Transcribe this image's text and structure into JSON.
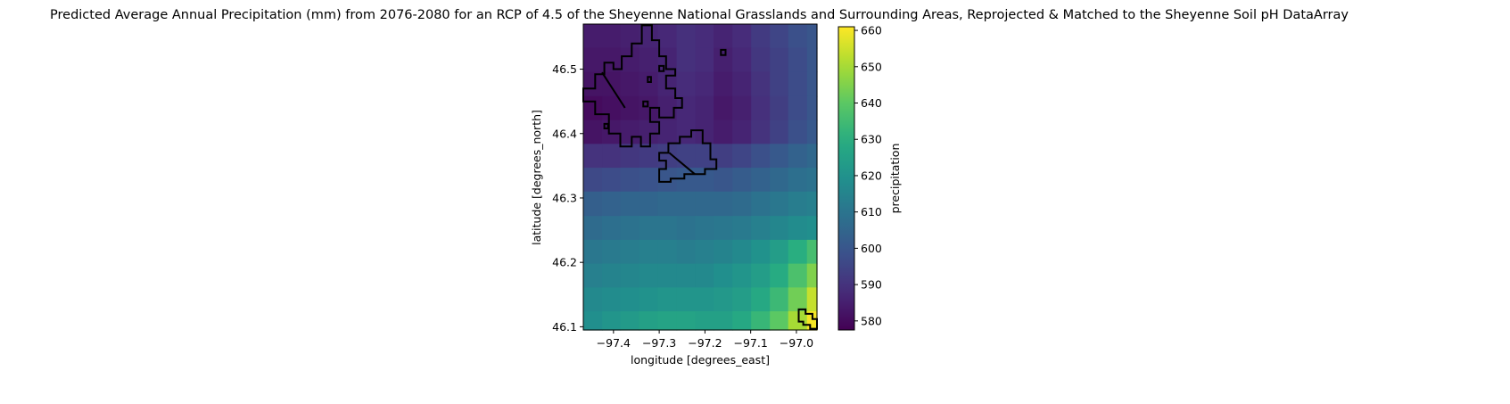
{
  "chart_data": {
    "type": "heatmap",
    "title": "Predicted Average Annual Precipitation (mm) from 2076-2080 for an RCP of 4.5 of the Sheyenne National Grasslands and Surrounding Areas, Reprojected & Matched to the Sheyenne Soil pH DataArray",
    "xlabel": "longitude [degrees_east]",
    "ylabel": "latitude [degrees_north]",
    "colorbar_label": "precipitation",
    "colormap": "viridis",
    "xlim": [
      -97.466,
      -96.955
    ],
    "ylim": [
      46.095,
      46.57
    ],
    "clim": [
      577.5,
      661
    ],
    "x_ticks": [
      -97.4,
      -97.3,
      -97.2,
      -97.1,
      -97.0
    ],
    "x_tick_labels": [
      "−97.4",
      "−97.3",
      "−97.2",
      "−97.1",
      "−97.0"
    ],
    "y_ticks": [
      46.1,
      46.2,
      46.3,
      46.4,
      46.5
    ],
    "y_tick_labels": [
      "46.1",
      "46.2",
      "46.3",
      "46.4",
      "46.5"
    ],
    "colorbar_ticks": [
      580,
      590,
      600,
      610,
      620,
      630,
      640,
      650,
      660
    ],
    "colorbar_tick_labels": [
      "580",
      "590",
      "600",
      "610",
      "620",
      "630",
      "640",
      "650",
      "660"
    ],
    "cell_lon_edges": [
      -97.466,
      -97.425,
      -97.385,
      -97.344,
      -97.303,
      -97.262,
      -97.221,
      -97.181,
      -97.14,
      -97.099,
      -97.058,
      -97.018,
      -96.977,
      -96.955
    ],
    "cell_lat_edges": [
      46.57,
      46.533,
      46.496,
      46.458,
      46.421,
      46.384,
      46.347,
      46.31,
      46.272,
      46.235,
      46.198,
      46.161,
      46.124,
      46.095
    ],
    "values": [
      [
        584,
        584,
        585,
        586,
        587,
        589,
        588,
        586,
        588,
        592,
        595,
        598,
        600
      ],
      [
        583,
        583,
        584,
        585,
        586,
        589,
        588,
        585,
        587,
        591,
        594,
        597,
        600
      ],
      [
        582,
        582,
        583,
        584,
        586,
        588,
        587,
        584,
        586,
        590,
        594,
        597,
        600
      ],
      [
        580,
        581,
        582,
        583,
        585,
        587,
        586,
        583,
        585,
        589,
        593,
        597,
        600
      ],
      [
        582,
        583,
        584,
        585,
        586,
        587,
        586,
        584,
        586,
        590,
        594,
        598,
        601
      ],
      [
        590,
        590,
        591,
        592,
        593,
        594,
        594,
        593,
        595,
        598,
        601,
        604,
        606
      ],
      [
        596,
        597,
        598,
        599,
        600,
        601,
        601,
        600,
        602,
        604,
        606,
        608,
        609
      ],
      [
        603,
        604,
        605,
        605,
        606,
        606,
        606,
        606,
        607,
        609,
        611,
        613,
        614
      ],
      [
        607,
        608,
        609,
        610,
        610,
        609,
        610,
        611,
        612,
        614,
        616,
        618,
        619
      ],
      [
        611,
        612,
        613,
        614,
        614,
        613,
        614,
        615,
        617,
        620,
        624,
        630,
        636
      ],
      [
        614,
        615,
        616,
        617,
        617,
        617,
        617,
        619,
        621,
        624,
        629,
        637,
        645
      ],
      [
        617,
        618,
        619,
        620,
        621,
        621,
        621,
        622,
        624,
        628,
        634,
        643,
        654
      ],
      [
        619,
        621,
        623,
        625,
        626,
        626,
        625,
        625,
        628,
        633,
        640,
        650,
        660
      ]
    ],
    "boundaries": [
      {
        "kind": "polygon",
        "points": [
          [
            -97.466,
            46.47
          ],
          [
            -97.44,
            46.47
          ],
          [
            -97.44,
            46.492
          ],
          [
            -97.42,
            46.492
          ],
          [
            -97.42,
            46.51
          ],
          [
            -97.4,
            46.51
          ],
          [
            -97.4,
            46.5
          ],
          [
            -97.382,
            46.5
          ],
          [
            -97.382,
            46.52
          ],
          [
            -97.36,
            46.52
          ],
          [
            -97.36,
            46.54
          ],
          [
            -97.338,
            46.54
          ],
          [
            -97.338,
            46.568
          ],
          [
            -97.316,
            46.568
          ],
          [
            -97.316,
            46.545
          ],
          [
            -97.3,
            46.545
          ],
          [
            -97.3,
            46.52
          ],
          [
            -97.285,
            46.52
          ],
          [
            -97.285,
            46.5
          ],
          [
            -97.265,
            46.5
          ],
          [
            -97.265,
            46.49
          ],
          [
            -97.285,
            46.49
          ],
          [
            -97.285,
            46.47
          ],
          [
            -97.265,
            46.47
          ],
          [
            -97.265,
            46.455
          ],
          [
            -97.25,
            46.455
          ],
          [
            -97.25,
            46.44
          ],
          [
            -97.268,
            46.44
          ],
          [
            -97.268,
            46.425
          ],
          [
            -97.3,
            46.425
          ],
          [
            -97.3,
            46.44
          ],
          [
            -97.32,
            46.44
          ],
          [
            -97.32,
            46.418
          ],
          [
            -97.3,
            46.418
          ],
          [
            -97.3,
            46.4
          ],
          [
            -97.32,
            46.4
          ],
          [
            -97.32,
            46.38
          ],
          [
            -97.34,
            46.38
          ],
          [
            -97.34,
            46.395
          ],
          [
            -97.36,
            46.395
          ],
          [
            -97.36,
            46.38
          ],
          [
            -97.385,
            46.38
          ],
          [
            -97.385,
            46.4
          ],
          [
            -97.41,
            46.4
          ],
          [
            -97.41,
            46.43
          ],
          [
            -97.44,
            46.43
          ],
          [
            -97.44,
            46.45
          ],
          [
            -97.466,
            46.45
          ]
        ]
      },
      {
        "kind": "polygon",
        "points": [
          [
            -97.3,
            46.37
          ],
          [
            -97.28,
            46.37
          ],
          [
            -97.28,
            46.385
          ],
          [
            -97.255,
            46.385
          ],
          [
            -97.255,
            46.395
          ],
          [
            -97.23,
            46.395
          ],
          [
            -97.23,
            46.405
          ],
          [
            -97.205,
            46.405
          ],
          [
            -97.205,
            46.385
          ],
          [
            -97.188,
            46.385
          ],
          [
            -97.188,
            46.36
          ],
          [
            -97.175,
            46.36
          ],
          [
            -97.175,
            46.345
          ],
          [
            -97.2,
            46.345
          ],
          [
            -97.2,
            46.337
          ],
          [
            -97.245,
            46.337
          ],
          [
            -97.245,
            46.33
          ],
          [
            -97.275,
            46.33
          ],
          [
            -97.275,
            46.325
          ],
          [
            -97.3,
            46.325
          ],
          [
            -97.3,
            46.345
          ],
          [
            -97.285,
            46.345
          ],
          [
            -97.285,
            46.358
          ],
          [
            -97.3,
            46.358
          ]
        ]
      },
      {
        "kind": "polygon",
        "points": [
          [
            -96.995,
            46.127
          ],
          [
            -96.98,
            46.127
          ],
          [
            -96.98,
            46.12
          ],
          [
            -96.965,
            46.12
          ],
          [
            -96.965,
            46.112
          ],
          [
            -96.955,
            46.112
          ],
          [
            -96.955,
            46.097
          ],
          [
            -96.97,
            46.097
          ],
          [
            -96.97,
            46.103
          ],
          [
            -96.985,
            46.103
          ],
          [
            -96.985,
            46.108
          ],
          [
            -96.995,
            46.108
          ]
        ]
      },
      {
        "kind": "line",
        "points": [
          [
            -97.425,
            46.495
          ],
          [
            -97.375,
            46.44
          ]
        ]
      },
      {
        "kind": "line",
        "points": [
          [
            -97.278,
            46.37
          ],
          [
            -97.222,
            46.337
          ]
        ]
      },
      {
        "kind": "polygon",
        "points": [
          [
            -97.325,
            46.488
          ],
          [
            -97.318,
            46.488
          ],
          [
            -97.318,
            46.48
          ],
          [
            -97.325,
            46.48
          ]
        ]
      },
      {
        "kind": "polygon",
        "points": [
          [
            -97.3,
            46.505
          ],
          [
            -97.29,
            46.505
          ],
          [
            -97.29,
            46.497
          ],
          [
            -97.3,
            46.497
          ]
        ]
      },
      {
        "kind": "polygon",
        "points": [
          [
            -97.165,
            46.53
          ],
          [
            -97.155,
            46.53
          ],
          [
            -97.155,
            46.522
          ],
          [
            -97.165,
            46.522
          ]
        ]
      },
      {
        "kind": "polygon",
        "points": [
          [
            -97.335,
            46.45
          ],
          [
            -97.325,
            46.45
          ],
          [
            -97.325,
            46.442
          ],
          [
            -97.335,
            46.442
          ]
        ]
      },
      {
        "kind": "polygon",
        "points": [
          [
            -97.42,
            46.415
          ],
          [
            -97.412,
            46.415
          ],
          [
            -97.412,
            46.408
          ],
          [
            -97.42,
            46.408
          ]
        ]
      }
    ]
  }
}
